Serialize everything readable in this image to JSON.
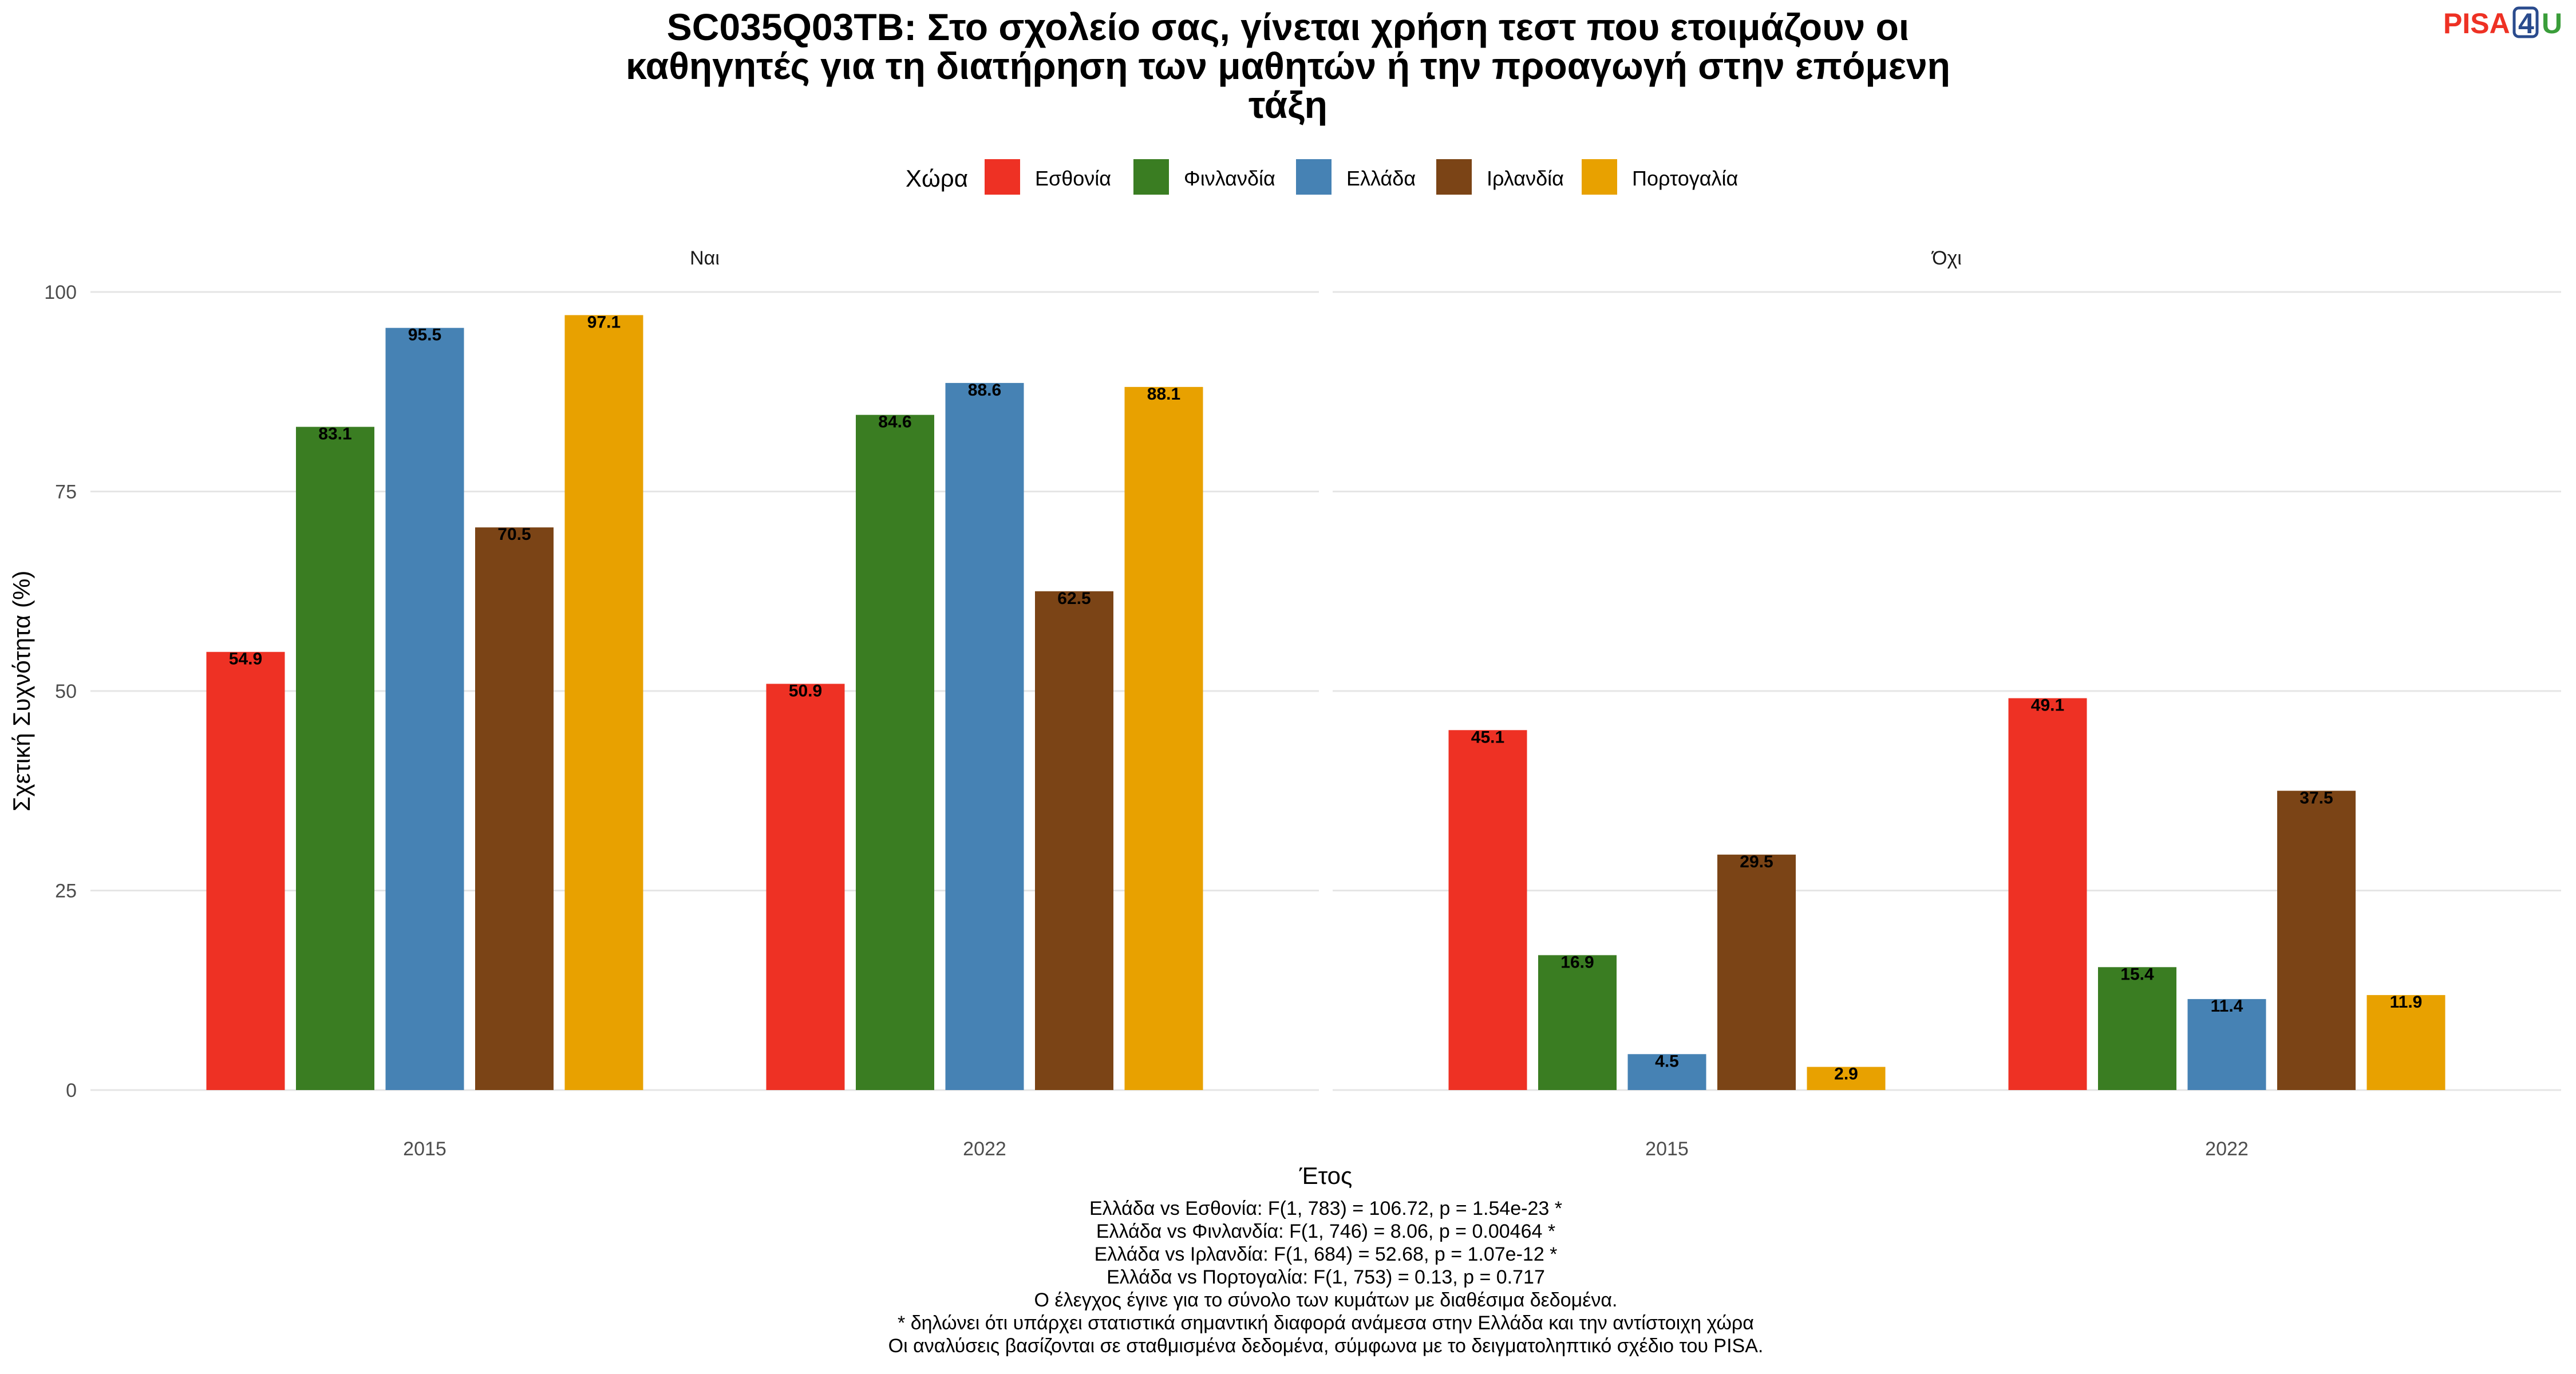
{
  "logo": {
    "text_left": "PISA",
    "text_digit": "4",
    "text_right": "U"
  },
  "title_lines": [
    "SC035Q03TB: Στο σχολείο σας, γίνεται χρήση τεστ που ετοιμάζουν οι",
    "καθηγητές για τη διατήρηση των μαθητών ή την προαγωγή στην επόμενη",
    "τάξη"
  ],
  "captions": [
    "Ελλάδα vs Εσθονία: F(1, 783) = 106.72, p = 1.54e-23 *",
    "Ελλάδα vs Φινλανδία: F(1, 746) = 8.06, p = 0.00464 *",
    "Ελλάδα vs Ιρλανδία: F(1, 684) = 52.68, p = 1.07e-12 *",
    "Ελλάδα vs Πορτογαλία: F(1, 753) = 0.13, p = 0.717",
    "Ο έλεγχος έγινε για το σύνολο των κυμάτων με διαθέσιμα δεδομένα.",
    "* δηλώνει ότι υπάρχει στατιστικά σημαντική διαφορά ανάμεσα στην Ελλάδα και την αντίστοιχη χώρα",
    "Οι αναλύσεις βασίζονται σε σταθμισμένα δεδομένα, σύμφωνα με το δειγματοληπτικό σχέδιο του PISA."
  ],
  "chart_data": {
    "type": "bar",
    "title": "SC035Q03TB: Στο σχολείο σας, γίνεται χρήση τεστ που ετοιμάζουν οι καθηγητές για τη διατήρηση των μαθητών ή την προαγωγή στην επόμενη τάξη",
    "xlabel": "Έτος",
    "ylabel": "Σχετική Συχνότητα (%)",
    "ylim": [
      0,
      100
    ],
    "yticks": [
      0,
      25,
      50,
      75,
      100
    ],
    "legend_title": "Χώρα",
    "legend_position": "top",
    "grid": true,
    "categories": [
      "2015",
      "2022"
    ],
    "facets": [
      {
        "label": "Ναι",
        "series": [
          {
            "name": "Εσθονία",
            "color": "#EE3124",
            "values": [
              54.9,
              50.9
            ],
            "labels": [
              "54.9",
              "50.9"
            ]
          },
          {
            "name": "Φινλανδία",
            "color": "#3A7D22",
            "values": [
              83.1,
              84.6
            ],
            "labels": [
              "83.1",
              "84.6"
            ]
          },
          {
            "name": "Ελλάδα",
            "color": "#4682B4",
            "values": [
              95.5,
              88.6
            ],
            "labels": [
              "95.5",
              "88.6"
            ]
          },
          {
            "name": "Ιρλανδία",
            "color": "#7B4416",
            "values": [
              70.5,
              62.5
            ],
            "labels": [
              "70.5",
              "62.5"
            ]
          },
          {
            "name": "Πορτογαλία",
            "color": "#E8A100",
            "values": [
              97.1,
              88.1
            ],
            "labels": [
              "97.1",
              "88.1"
            ]
          }
        ]
      },
      {
        "label": "Όχι",
        "series": [
          {
            "name": "Εσθονία",
            "color": "#EE3124",
            "values": [
              45.1,
              49.1
            ],
            "labels": [
              "45.1",
              "49.1"
            ]
          },
          {
            "name": "Φινλανδία",
            "color": "#3A7D22",
            "values": [
              16.9,
              15.4
            ],
            "labels": [
              "16.9",
              "15.4"
            ]
          },
          {
            "name": "Ελλάδα",
            "color": "#4682B4",
            "values": [
              4.5,
              11.4
            ],
            "labels": [
              "4.5",
              "11.4"
            ]
          },
          {
            "name": "Ιρλανδία",
            "color": "#7B4416",
            "values": [
              29.5,
              37.5
            ],
            "labels": [
              "29.5",
              "37.5"
            ]
          },
          {
            "name": "Πορτογαλία",
            "color": "#E8A100",
            "values": [
              2.9,
              11.9
            ],
            "labels": [
              "2.9",
              "11.9"
            ]
          }
        ]
      }
    ]
  }
}
